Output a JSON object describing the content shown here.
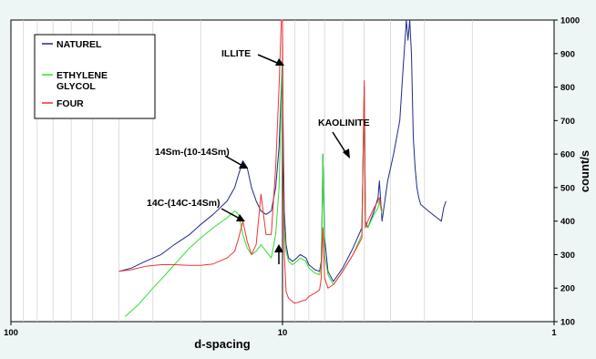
{
  "chart_data": {
    "type": "line",
    "xlabel": "d-spacing",
    "ylabel": "count/s",
    "x_scale": "log",
    "x_reversed": true,
    "xlim": [
      100,
      1
    ],
    "ylim": [
      100,
      1000
    ],
    "x_tick_labels": [
      "100",
      "10",
      "1"
    ],
    "y_ticks": [
      100,
      200,
      300,
      400,
      500,
      600,
      700,
      800,
      900,
      1000
    ],
    "y_axis_side": "right",
    "vertical_marker_x": 10,
    "grid": "vertical minor log gridlines",
    "legend": {
      "placement": "top-left"
    },
    "series": [
      {
        "name": "NATUREL",
        "color": "#1f2a8c",
        "x": [
          40,
          36,
          32,
          28,
          25,
          22,
          20,
          18,
          16,
          15,
          14.5,
          14,
          13.5,
          13,
          12.5,
          12,
          11.5,
          11,
          10.6,
          10.3,
          10.1,
          10.0,
          9.95,
          9.85,
          9.7,
          9.5,
          9.2,
          9,
          8.6,
          8.2,
          8,
          7.6,
          7.3,
          7.2,
          7.15,
          7.1,
          7.0,
          6.8,
          6.5,
          6.0,
          5.5,
          5.1,
          5.0,
          4.95,
          4.85,
          4.6,
          4.45,
          4.4,
          4.3,
          4.1,
          3.9,
          3.7,
          3.6,
          3.5,
          3.45,
          3.4,
          3.35,
          3.3,
          3.25,
          3.2,
          3.15,
          3.1,
          3.0,
          2.9,
          2.8,
          2.7,
          2.6,
          2.55,
          2.5
        ],
        "y": [
          250,
          260,
          280,
          300,
          330,
          360,
          390,
          420,
          460,
          500,
          540,
          580,
          560,
          500,
          460,
          430,
          420,
          430,
          500,
          620,
          800,
          890,
          700,
          430,
          330,
          290,
          280,
          285,
          300,
          290,
          270,
          255,
          250,
          280,
          420,
          600,
          350,
          250,
          220,
          260,
          320,
          380,
          800,
          400,
          380,
          430,
          470,
          520,
          400,
          520,
          600,
          700,
          850,
          1000,
          940,
          1000,
          900,
          650,
          560,
          500,
          470,
          450,
          440,
          430,
          420,
          410,
          400,
          440,
          460
        ]
      },
      {
        "name": "ETHYLENE GLYCOL",
        "color": "#33dd33",
        "x": [
          38,
          34,
          30,
          27,
          25,
          22,
          20,
          18,
          16,
          15,
          14.5,
          14,
          13.5,
          13,
          12.5,
          12,
          11.5,
          11,
          10.6,
          10.3,
          10.1,
          10.0,
          9.95,
          9.85,
          9.7,
          9.5,
          9.2,
          9,
          8.6,
          8.2,
          8,
          7.6,
          7.3,
          7.2,
          7.15,
          7.1,
          7.0,
          6.8,
          6.5,
          6.0,
          5.5,
          5.1,
          5.0,
          4.95,
          4.85,
          4.6,
          4.45,
          4.4,
          4.3
        ],
        "y": [
          115,
          150,
          200,
          240,
          270,
          320,
          350,
          380,
          410,
          430,
          420,
          360,
          320,
          300,
          310,
          330,
          310,
          290,
          360,
          500,
          760,
          880,
          600,
          380,
          310,
          280,
          270,
          275,
          290,
          280,
          260,
          245,
          240,
          270,
          400,
          600,
          300,
          240,
          210,
          250,
          300,
          360,
          800,
          390,
          380,
          420,
          440,
          460,
          420
        ]
      },
      {
        "name": "FOUR",
        "color": "#ee3333",
        "x": [
          40,
          36,
          32,
          28,
          25,
          22,
          20,
          18,
          16,
          15,
          14.5,
          14,
          13.5,
          13,
          12.5,
          12,
          11.5,
          11,
          10.6,
          10.3,
          10.1,
          10.0,
          9.95,
          9.85,
          9.7,
          9.5,
          9.2,
          9,
          8.6,
          8.2,
          8,
          7.6,
          7.3,
          7.2,
          7.15,
          7.1,
          7.0,
          6.8,
          6.5,
          6.0,
          5.5,
          5.1,
          5.0,
          4.95,
          4.85,
          4.6,
          4.45,
          4.4,
          4.3
        ],
        "y": [
          250,
          255,
          265,
          270,
          270,
          268,
          268,
          272,
          290,
          310,
          350,
          400,
          340,
          300,
          330,
          480,
          360,
          360,
          560,
          800,
          1000,
          1000,
          620,
          300,
          190,
          170,
          160,
          155,
          160,
          165,
          175,
          185,
          195,
          230,
          320,
          380,
          230,
          200,
          210,
          250,
          300,
          350,
          820,
          380,
          400,
          440,
          460,
          470,
          430
        ]
      }
    ],
    "annotations": [
      {
        "text": "ILLITE"
      },
      {
        "text": "KAOLINITE"
      },
      {
        "text": "14Sm-(10-14Sm)"
      },
      {
        "text": "14C-(14C-14Sm)"
      },
      {
        "text": ""
      }
    ]
  }
}
